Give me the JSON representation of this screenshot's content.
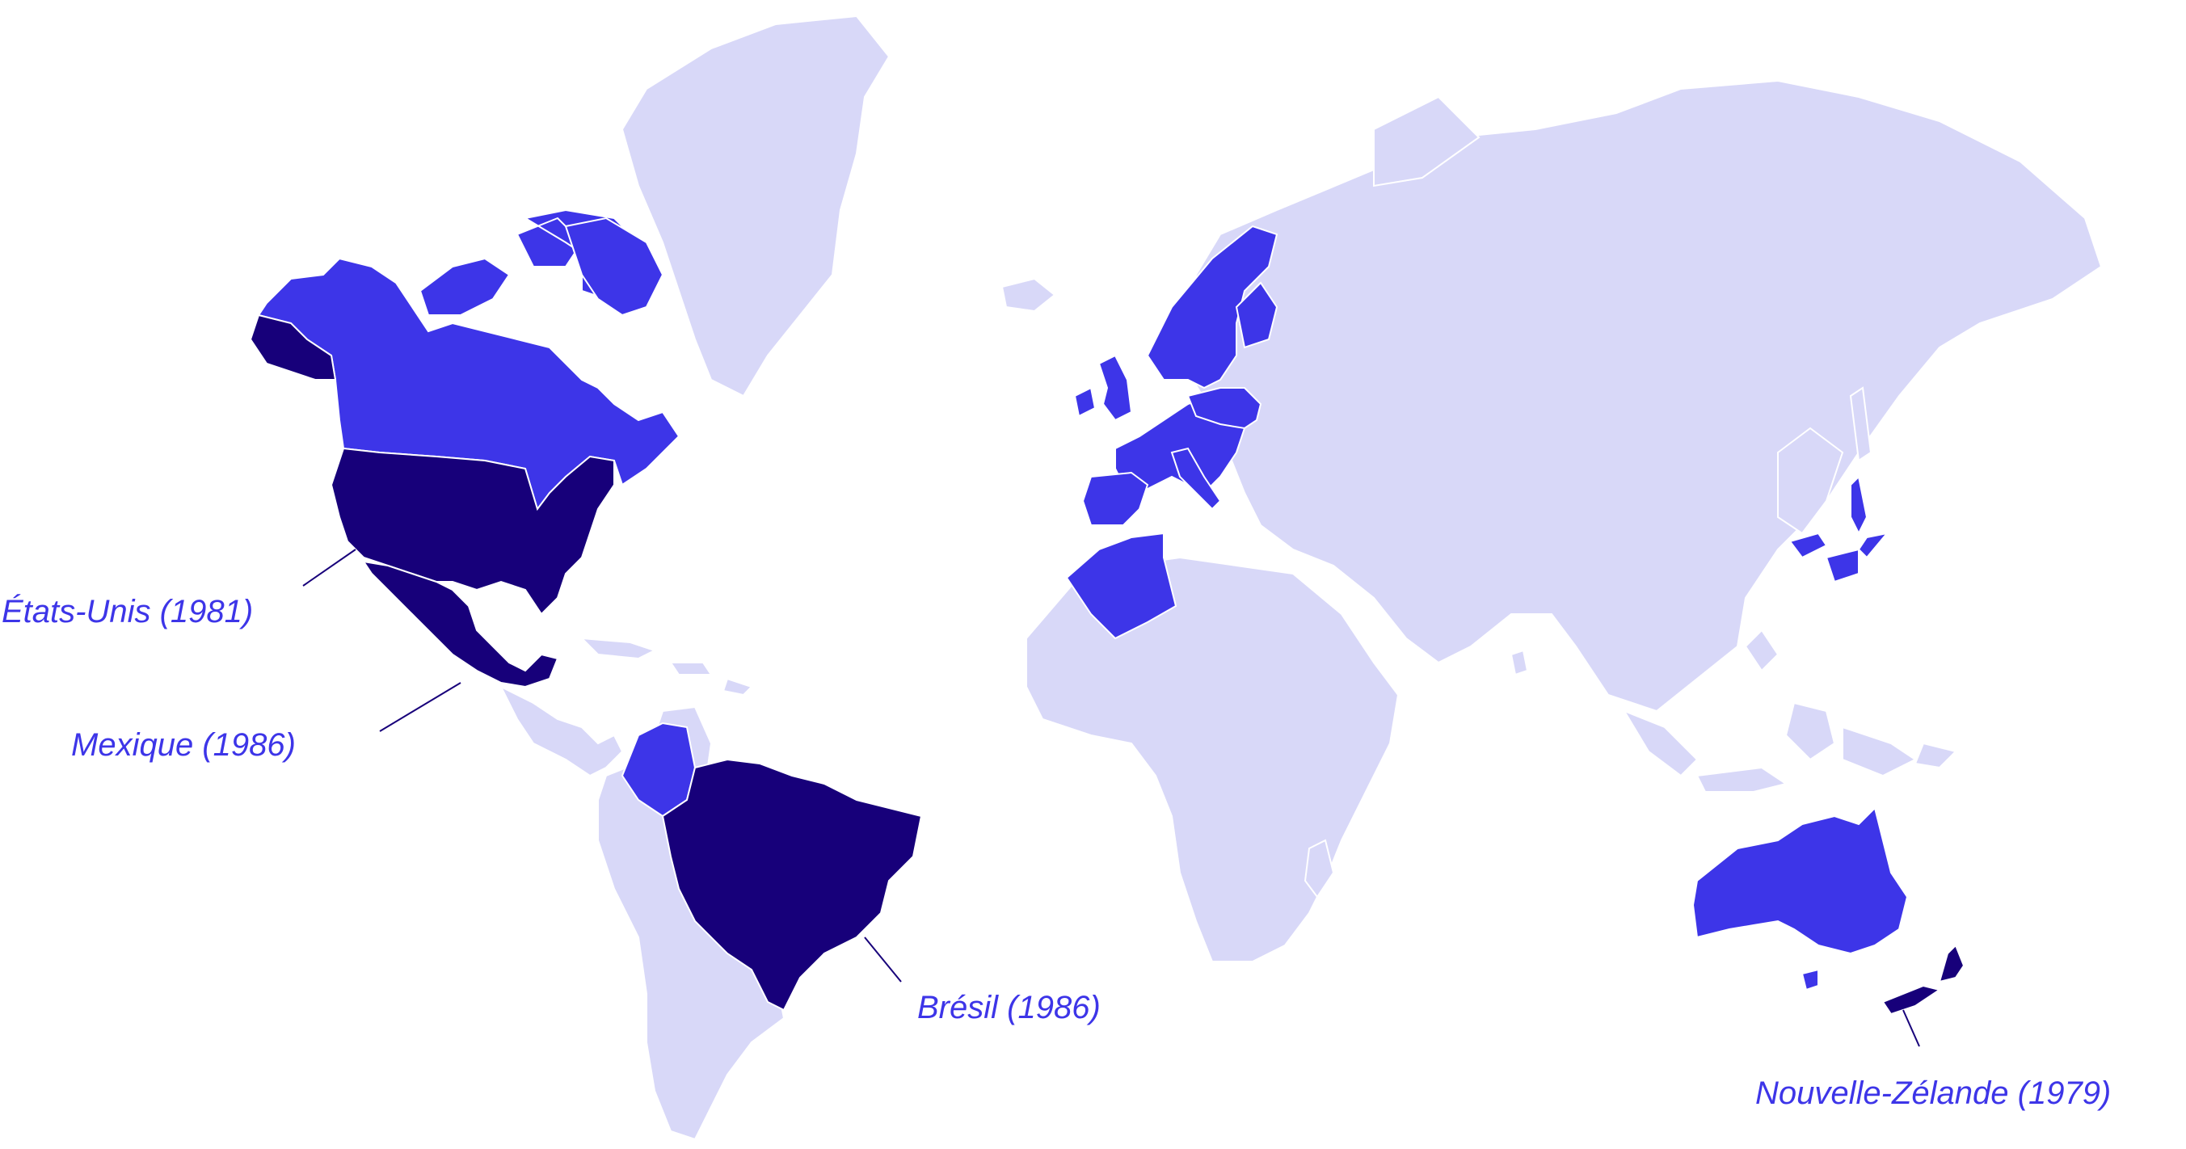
{
  "colors": {
    "background": "#ffffff",
    "base_land": "#d8d8f8",
    "highlight_medium": "#3d35e8",
    "highlight_dark": "#17007a",
    "label_text": "#3d35e8",
    "leader_line": "#17007a"
  },
  "legend_note": "",
  "labels": {
    "usa": "États-Unis (1981)",
    "mexico": "Mexique (1986)",
    "brazil": "Brésil (1986)",
    "new_zealand": "Nouvelle-Zélande (1979)"
  },
  "regions": [
    {
      "name": "greenland",
      "category": "base"
    },
    {
      "name": "eurasia",
      "category": "base"
    },
    {
      "name": "africa",
      "category": "base"
    },
    {
      "name": "south-america-rest",
      "category": "base"
    },
    {
      "name": "central-america",
      "category": "base"
    },
    {
      "name": "indonesia-islands",
      "category": "base"
    },
    {
      "name": "canada",
      "category": "medium"
    },
    {
      "name": "scandinavia",
      "category": "medium"
    },
    {
      "name": "western-europe",
      "category": "medium"
    },
    {
      "name": "north-africa",
      "category": "medium"
    },
    {
      "name": "japan",
      "category": "medium"
    },
    {
      "name": "australia",
      "category": "medium"
    },
    {
      "name": "venezuela",
      "category": "medium"
    },
    {
      "name": "united-states",
      "category": "dark"
    },
    {
      "name": "mexico",
      "category": "dark"
    },
    {
      "name": "brazil",
      "category": "dark"
    },
    {
      "name": "new-zealand",
      "category": "dark"
    }
  ]
}
